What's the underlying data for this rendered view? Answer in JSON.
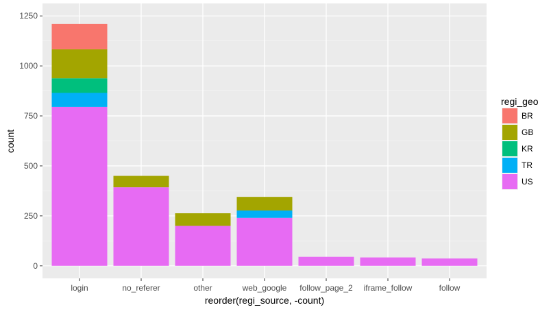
{
  "chart_data": {
    "type": "bar",
    "stacked": true,
    "title": "",
    "xlabel": "reorder(regi_source, -count)",
    "ylabel": "count",
    "ylim": [
      0,
      1250
    ],
    "yticks": [
      0,
      250,
      500,
      750,
      1000,
      1250
    ],
    "grid": true,
    "legend": {
      "title": "regi_geo",
      "position": "right"
    },
    "categories": [
      "login",
      "no_referer",
      "other",
      "web_google",
      "follow_page_2",
      "iframe_follow",
      "follow"
    ],
    "series": [
      {
        "name": "US",
        "color": "#E76BF3",
        "values": [
          795,
          393,
          200,
          240,
          45,
          42,
          37
        ]
      },
      {
        "name": "TR",
        "color": "#00B0F6",
        "values": [
          70,
          0,
          0,
          37,
          0,
          0,
          0
        ]
      },
      {
        "name": "KR",
        "color": "#00BF7D",
        "values": [
          73,
          0,
          0,
          0,
          0,
          0,
          0
        ]
      },
      {
        "name": "GB",
        "color": "#A3A500",
        "values": [
          145,
          57,
          63,
          68,
          0,
          0,
          0
        ]
      },
      {
        "name": "BR",
        "color": "#F8766D",
        "values": [
          127,
          0,
          0,
          0,
          0,
          0,
          0
        ]
      }
    ],
    "legend_order": [
      "BR",
      "GB",
      "KR",
      "TR",
      "US"
    ]
  }
}
